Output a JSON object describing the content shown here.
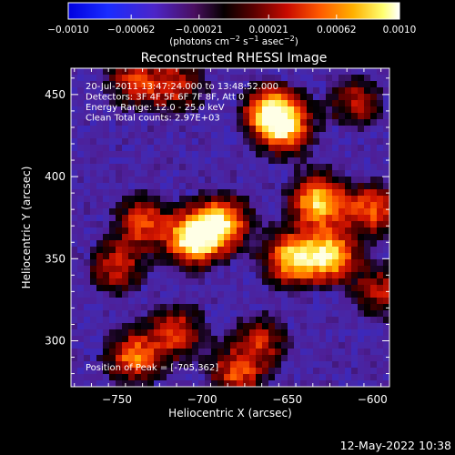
{
  "chart_data": {
    "type": "heatmap",
    "title": "Reconstructed RHESSI Image",
    "xlabel": "Heliocentric X (arcsec)",
    "ylabel": "Heliocentric Y (arcsec)",
    "xlim": [
      -777,
      -590
    ],
    "ylim": [
      272,
      466
    ],
    "x_ticks": [
      -750,
      -700,
      -650,
      -600
    ],
    "y_ticks": [
      300,
      350,
      400,
      450
    ],
    "colorbar": {
      "ticks": [
        "-0.0010",
        "-0.00062",
        "-0.00021",
        "0.00021",
        "0.00062",
        "0.0010"
      ],
      "tick_values": [
        -0.001,
        -0.00062,
        -0.00021,
        0.00021,
        0.00062,
        0.001
      ],
      "range": [
        -0.001,
        0.001
      ]
    },
    "info_lines": [
      "20-Jul-2011 13:47:24.000 to 13:48:52.000",
      "Detectors: 3F 4F 5F 6F 7F 8F, Att 0",
      "Energy Range: 12.0 - 25.0 keV",
      "Clean     Total counts: 2.97E+03"
    ],
    "peak_label": "Position of Peak = [-705,362]",
    "peak_position": [
      -705,
      362
    ],
    "bright_sources": [
      {
        "x": -705,
        "y": 362,
        "level": 1.0
      },
      {
        "x": -688,
        "y": 372,
        "level": 0.8
      },
      {
        "x": -632,
        "y": 385,
        "level": 0.85
      },
      {
        "x": -648,
        "y": 350,
        "level": 0.8
      },
      {
        "x": -625,
        "y": 352,
        "level": 0.85
      },
      {
        "x": -652,
        "y": 430,
        "level": 0.75
      },
      {
        "x": -660,
        "y": 440,
        "level": 0.7
      },
      {
        "x": -600,
        "y": 380,
        "level": 0.6
      },
      {
        "x": -735,
        "y": 372,
        "level": 0.55
      },
      {
        "x": -750,
        "y": 345,
        "level": 0.5
      },
      {
        "x": -740,
        "y": 290,
        "level": 0.65
      },
      {
        "x": -715,
        "y": 305,
        "level": 0.55
      },
      {
        "x": -680,
        "y": 280,
        "level": 0.55
      },
      {
        "x": -665,
        "y": 300,
        "level": 0.45
      },
      {
        "x": -610,
        "y": 445,
        "level": 0.45
      },
      {
        "x": -715,
        "y": 455,
        "level": 0.5
      },
      {
        "x": -740,
        "y": 458,
        "level": 0.5
      },
      {
        "x": -595,
        "y": 330,
        "level": 0.45
      }
    ]
  },
  "footer": {
    "timestamp": "12-May-2022 10:38"
  },
  "colors": {
    "background": "#000000",
    "colorbar_low": "#0000ff",
    "colorbar_high": "#ffffff",
    "image_floor": "#4b1f9a"
  }
}
